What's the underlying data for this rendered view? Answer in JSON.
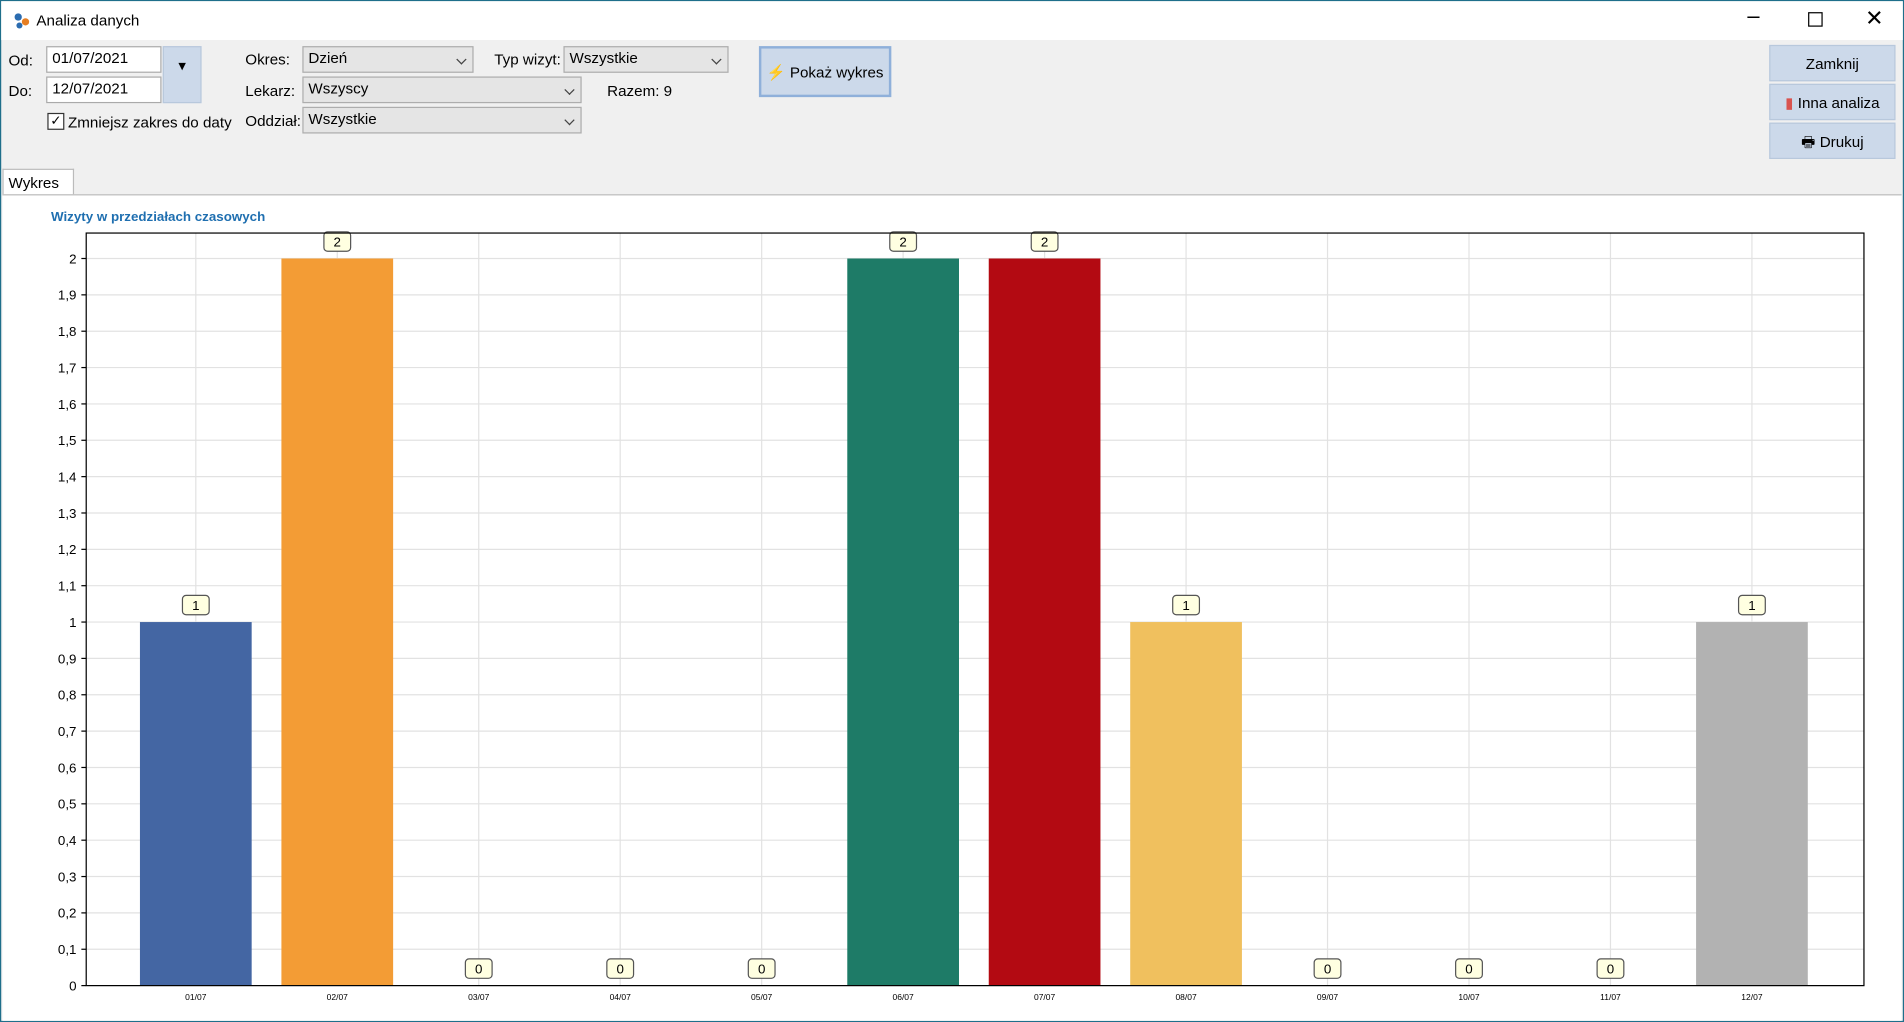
{
  "window": {
    "title": "Analiza danych"
  },
  "filters": {
    "from_label": "Od:",
    "from_value": "01/07/2021",
    "to_label": "Do:",
    "to_value": "12/07/2021",
    "narrow_label": "Zmniejsz zakres do daty",
    "period_label": "Okres:",
    "period_value": "Dzień",
    "doctor_label": "Lekarz:",
    "doctor_value": "Wszyscy",
    "branch_label": "Oddział:",
    "branch_value": "Wszystkie",
    "visit_type_label": "Typ wizyt:",
    "visit_type_value": "Wszystkie",
    "total": "Razem: 9",
    "show_button": "Pokaż wykres"
  },
  "buttons": {
    "close": "Zamknij",
    "other": "Inna analiza",
    "print": "Drukuj"
  },
  "tab": "Wykres",
  "chart_data": {
    "type": "bar",
    "title": "Wizyty w przedziałach czasowych",
    "categories": [
      "01/07",
      "02/07",
      "03/07",
      "04/07",
      "05/07",
      "06/07",
      "07/07",
      "08/07",
      "09/07",
      "10/07",
      "11/07",
      "12/07"
    ],
    "values": [
      1,
      2,
      0,
      0,
      0,
      2,
      2,
      1,
      0,
      0,
      0,
      1
    ],
    "colors": [
      "#4466a3",
      "#f39c35",
      "#c0392b",
      "#3a7ab0",
      "#2f8f6f",
      "#1e7b67",
      "#b30a12",
      "#f0c05e",
      "#2e9aa6",
      "#4466a3",
      "#c9a33e",
      "#b2b2b2"
    ],
    "ylim": [
      0,
      2.07
    ],
    "yticks": [
      0,
      {
        "value": 0.1,
        "label": "0,1"
      },
      {
        "value": 0.2,
        "label": "0,2"
      },
      {
        "value": 0.3,
        "label": "0,3"
      },
      {
        "value": 0.4,
        "label": "0,4"
      },
      {
        "value": 0.5,
        "label": "0,5"
      },
      {
        "value": 0.6,
        "label": "0,6"
      },
      {
        "value": 0.7,
        "label": "0,7"
      },
      {
        "value": 0.8,
        "label": "0,8"
      },
      {
        "value": 0.9,
        "label": "0,9"
      },
      1,
      {
        "value": 1.1,
        "label": "1,1"
      },
      {
        "value": 1.2,
        "label": "1,2"
      },
      {
        "value": 1.3,
        "label": "1,3"
      },
      {
        "value": 1.4,
        "label": "1,4"
      },
      {
        "value": 1.5,
        "label": "1,5"
      },
      {
        "value": 1.6,
        "label": "1,6"
      },
      {
        "value": 1.7,
        "label": "1,7"
      },
      {
        "value": 1.8,
        "label": "1,8"
      },
      {
        "value": 1.9,
        "label": "1,9"
      },
      2
    ],
    "grid": true
  }
}
